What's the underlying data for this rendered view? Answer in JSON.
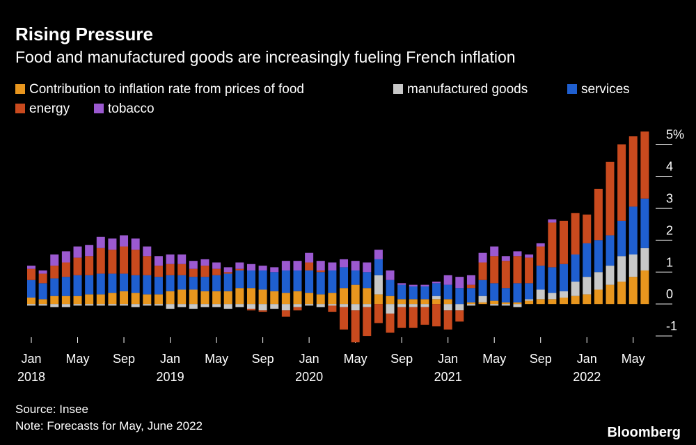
{
  "chart_data": {
    "type": "bar",
    "stacked": true,
    "title": "Rising Pressure",
    "subtitle": "Food and manufactured goods are increasingly fueling French inflation",
    "source": "Source: Insee",
    "note": "Note: Forecasts for May, June 2022",
    "brand": "Bloomberg",
    "x": [
      "2018-01",
      "2018-02",
      "2018-03",
      "2018-04",
      "2018-05",
      "2018-06",
      "2018-07",
      "2018-08",
      "2018-09",
      "2018-10",
      "2018-11",
      "2018-12",
      "2019-01",
      "2019-02",
      "2019-03",
      "2019-04",
      "2019-05",
      "2019-06",
      "2019-07",
      "2019-08",
      "2019-09",
      "2019-10",
      "2019-11",
      "2019-12",
      "2020-01",
      "2020-02",
      "2020-03",
      "2020-04",
      "2020-05",
      "2020-06",
      "2020-07",
      "2020-08",
      "2020-09",
      "2020-10",
      "2020-11",
      "2020-12",
      "2021-01",
      "2021-02",
      "2021-03",
      "2021-04",
      "2021-05",
      "2021-06",
      "2021-07",
      "2021-08",
      "2021-09",
      "2021-10",
      "2021-11",
      "2021-12",
      "2022-01",
      "2022-02",
      "2022-03",
      "2022-04",
      "2022-05",
      "2022-06"
    ],
    "xticks": [
      {
        "value": "2018-01",
        "label": "Jan",
        "year": "2018"
      },
      {
        "value": "2018-05",
        "label": "May"
      },
      {
        "value": "2018-09",
        "label": "Sep"
      },
      {
        "value": "2019-01",
        "label": "Jan",
        "year": "2019"
      },
      {
        "value": "2019-05",
        "label": "May"
      },
      {
        "value": "2019-09",
        "label": "Sep"
      },
      {
        "value": "2020-01",
        "label": "Jan",
        "year": "2020"
      },
      {
        "value": "2020-05",
        "label": "May"
      },
      {
        "value": "2020-09",
        "label": "Sep"
      },
      {
        "value": "2021-01",
        "label": "Jan",
        "year": "2021"
      },
      {
        "value": "2021-05",
        "label": "May"
      },
      {
        "value": "2021-09",
        "label": "Sep"
      },
      {
        "value": "2022-01",
        "label": "Jan",
        "year": "2022"
      },
      {
        "value": "2022-05",
        "label": "May"
      }
    ],
    "ylim": [
      -1.15,
      5.6
    ],
    "yticks": [
      {
        "value": 5,
        "label": "5%"
      },
      4,
      3,
      2,
      1,
      0,
      -1
    ],
    "series": [
      {
        "name": "Contribution to inflation rate from prices of food",
        "color": "#e8961e",
        "values": [
          0.2,
          0.15,
          0.25,
          0.25,
          0.25,
          0.3,
          0.3,
          0.35,
          0.4,
          0.35,
          0.3,
          0.3,
          0.4,
          0.45,
          0.45,
          0.4,
          0.4,
          0.4,
          0.5,
          0.5,
          0.45,
          0.4,
          0.35,
          0.4,
          0.35,
          0.3,
          0.35,
          0.5,
          0.6,
          0.5,
          0.3,
          0.25,
          0.15,
          0.15,
          0.15,
          0.15,
          0.15,
          0.0,
          0.05,
          0.05,
          0.1,
          0.05,
          0.05,
          0.1,
          0.15,
          0.15,
          0.2,
          0.25,
          0.3,
          0.45,
          0.6,
          0.7,
          0.85,
          1.05
        ]
      },
      {
        "name": "manufactured goods",
        "color": "#c8c8c8",
        "values": [
          -0.05,
          -0.05,
          -0.1,
          -0.1,
          -0.05,
          -0.05,
          -0.05,
          -0.05,
          -0.05,
          -0.1,
          -0.05,
          -0.05,
          -0.15,
          -0.1,
          -0.15,
          -0.1,
          -0.1,
          -0.15,
          -0.1,
          -0.15,
          -0.2,
          -0.15,
          -0.2,
          -0.1,
          -0.05,
          -0.1,
          -0.05,
          -0.1,
          -0.2,
          -0.1,
          0.6,
          -0.3,
          -0.1,
          -0.1,
          -0.1,
          0.1,
          -0.2,
          -0.2,
          -0.05,
          0.2,
          -0.05,
          -0.05,
          -0.1,
          0.05,
          0.3,
          0.2,
          0.2,
          0.45,
          0.55,
          0.55,
          0.6,
          0.8,
          0.7,
          0.7
        ]
      },
      {
        "name": "services",
        "color": "#1f5fd0",
        "values": [
          0.55,
          0.5,
          0.55,
          0.6,
          0.65,
          0.6,
          0.65,
          0.6,
          0.55,
          0.55,
          0.6,
          0.55,
          0.5,
          0.45,
          0.4,
          0.45,
          0.5,
          0.55,
          0.55,
          0.55,
          0.6,
          0.6,
          0.7,
          0.65,
          0.7,
          0.7,
          0.7,
          0.65,
          0.45,
          0.5,
          0.5,
          0.5,
          0.45,
          0.4,
          0.4,
          0.4,
          0.45,
          0.5,
          0.45,
          0.5,
          0.55,
          0.45,
          0.6,
          0.5,
          0.75,
          0.8,
          0.85,
          0.85,
          1.05,
          1.0,
          0.95,
          1.1,
          1.5,
          1.55
        ]
      },
      {
        "name": "energy",
        "color": "#c94a1e",
        "values": [
          0.35,
          0.3,
          0.4,
          0.45,
          0.55,
          0.6,
          0.8,
          0.75,
          0.85,
          0.8,
          0.6,
          0.35,
          0.35,
          0.35,
          0.25,
          0.35,
          0.2,
          0.05,
          0.05,
          -0.05,
          -0.05,
          0.0,
          -0.2,
          -0.1,
          0.25,
          0.05,
          -0.2,
          -0.7,
          -1.0,
          -0.9,
          -0.6,
          -0.6,
          -0.65,
          -0.65,
          -0.55,
          -0.7,
          -0.6,
          -0.35,
          0.1,
          0.55,
          0.85,
          0.85,
          0.85,
          0.8,
          0.6,
          1.4,
          1.35,
          1.3,
          0.9,
          1.6,
          2.3,
          2.4,
          2.2,
          2.1
        ]
      },
      {
        "name": "tobacco",
        "color": "#9b59d0",
        "values": [
          0.1,
          0.1,
          0.35,
          0.35,
          0.35,
          0.35,
          0.35,
          0.35,
          0.35,
          0.35,
          0.3,
          0.3,
          0.3,
          0.3,
          0.25,
          0.2,
          0.2,
          0.15,
          0.2,
          0.2,
          0.15,
          0.15,
          0.3,
          0.3,
          0.3,
          0.3,
          0.25,
          0.25,
          0.3,
          0.3,
          0.3,
          0.3,
          0.05,
          0.05,
          0.05,
          0.05,
          0.3,
          0.35,
          0.3,
          0.3,
          0.3,
          0.15,
          0.15,
          0.1,
          0.1,
          0.1,
          0.0,
          0.0,
          0,
          0,
          0,
          0,
          0,
          0
        ]
      }
    ]
  }
}
